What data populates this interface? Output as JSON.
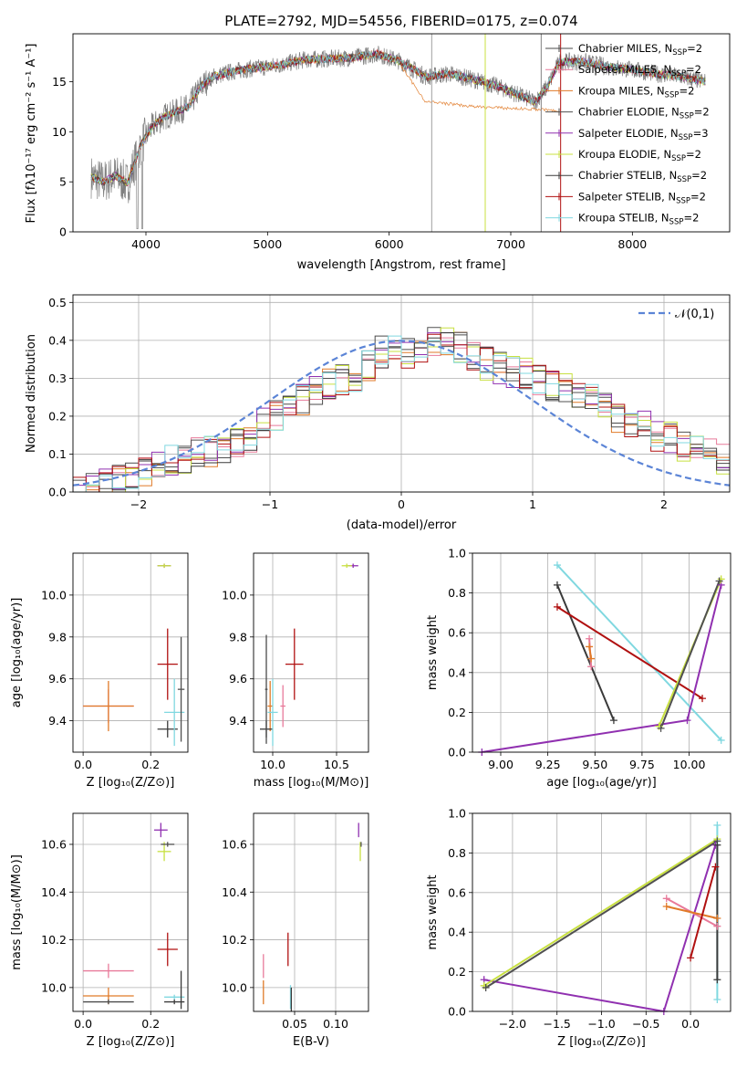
{
  "title": "PLATE=2792, MJD=54556, FIBERID=0175, z=0.074",
  "models": [
    {
      "key": "chabrier_miles",
      "label": "Chabrier MILES, ",
      "n": "2",
      "color": "#4a4a4a"
    },
    {
      "key": "salpeter_miles",
      "label": "Salpeter MILES, ",
      "n": "2",
      "color": "#e87a9a"
    },
    {
      "key": "kroupa_miles",
      "label": "Kroupa MILES, ",
      "n": "2",
      "color": "#e07a28"
    },
    {
      "key": "chabrier_elodie",
      "label": "Chabrier ELODIE, ",
      "n": "2",
      "color": "#505050"
    },
    {
      "key": "salpeter_elodie",
      "label": "Salpeter ELODIE, ",
      "n": "3",
      "color": "#9030b0"
    },
    {
      "key": "kroupa_elodie",
      "label": "Kroupa ELODIE, ",
      "n": "2",
      "color": "#c8e040"
    },
    {
      "key": "chabrier_stelib",
      "label": "Chabrier STELIB, ",
      "n": "2",
      "color": "#3a3a3a"
    },
    {
      "key": "salpeter_stelib",
      "label": "Salpeter STELIB, ",
      "n": "2",
      "color": "#b01010"
    },
    {
      "key": "kroupa_stelib",
      "label": "Kroupa STELIB, ",
      "n": "2",
      "color": "#80d8e0"
    }
  ],
  "nssp_prefix": "N",
  "nssp_sub": "SSP",
  "nssp_eq": "=",
  "chart_data": [
    {
      "id": "spectrum",
      "type": "line",
      "title": "PLATE=2792, MJD=54556, FIBERID=0175, z=0.074",
      "xlabel": "wavelength [Angstrom, rest frame]",
      "ylabel": "Flux [fλ10⁻¹⁷ erg cm⁻² s⁻¹ A⁻¹]",
      "xlim": [
        3400,
        8800
      ],
      "ylim": [
        0,
        19.8
      ],
      "xticks": [
        4000,
        5000,
        6000,
        7000,
        8000
      ],
      "yticks": [
        0,
        5,
        10,
        15
      ],
      "continuum": {
        "x": [
          3550,
          3650,
          3750,
          3850,
          3950,
          4050,
          4150,
          4250,
          4350,
          4450,
          4550,
          4700,
          4850,
          5000,
          5150,
          5300,
          5500,
          5700,
          5900,
          6100,
          6300,
          6500,
          6700,
          6900,
          7100,
          7200,
          7300,
          7400,
          7600,
          7800,
          8000,
          8200,
          8400,
          8600
        ],
        "y": [
          5.5,
          5.0,
          5.6,
          4.8,
          8.5,
          10.5,
          11.5,
          12.0,
          12.5,
          14.5,
          15.5,
          16.0,
          16.3,
          16.5,
          16.8,
          17.2,
          17.3,
          17.4,
          17.8,
          17.0,
          15.5,
          15.8,
          15.2,
          14.5,
          13.5,
          13.0,
          14.5,
          17.0,
          17.0,
          16.5,
          16.2,
          15.8,
          15.5,
          15.0
        ]
      },
      "model_tail": {
        "x": [
          6100,
          6300,
          6500,
          6700,
          6900,
          7100,
          7300,
          7400
        ],
        "y": [
          16.5,
          13.0,
          12.8,
          12.5,
          12.4,
          12.3,
          12.2,
          12.0
        ]
      }
    },
    {
      "id": "residuals",
      "type": "histogram",
      "xlabel": "(data-model)/error",
      "ylabel": "Normed distribution",
      "xlim": [
        -2.5,
        2.5
      ],
      "ylim": [
        0,
        0.52
      ],
      "xticks": [
        -2,
        -1,
        0,
        1,
        2
      ],
      "yticks": [
        0.0,
        0.1,
        0.2,
        0.3,
        0.4,
        0.5
      ],
      "reference": {
        "name": "𝒩(0,1)",
        "mean": 0,
        "sigma": 1
      },
      "profile": [
        0.01,
        0.01,
        0.02,
        0.03,
        0.04,
        0.05,
        0.06,
        0.08,
        0.09,
        0.1,
        0.11,
        0.12,
        0.13,
        0.15,
        0.18,
        0.2,
        0.22,
        0.24,
        0.26,
        0.28,
        0.3,
        0.31,
        0.33,
        0.37,
        0.38,
        0.37,
        0.38,
        0.39,
        0.4,
        0.38,
        0.36,
        0.34,
        0.33,
        0.32,
        0.31,
        0.3,
        0.28,
        0.27,
        0.25,
        0.24,
        0.22,
        0.2,
        0.18,
        0.17,
        0.15,
        0.14,
        0.12,
        0.11,
        0.1,
        0.09
      ]
    },
    {
      "id": "age_vs_z",
      "type": "scatter",
      "xlabel": "Z [log₁₀(Z/Z⊙)]",
      "ylabel": "age  [log₁₀(age/yr)]",
      "xlim": [
        -0.03,
        0.31
      ],
      "ylim": [
        9.25,
        10.2
      ],
      "xticks": [
        0.0,
        0.2
      ],
      "yticks": [
        9.4,
        9.6,
        9.8,
        10.0
      ],
      "points": [
        {
          "m": "salpeter_elodie",
          "x": 0.24,
          "y": 10.14,
          "xe": 0.02,
          "ye": 0.01
        },
        {
          "m": "kroupa_elodie",
          "x": 0.24,
          "y": 10.14,
          "xe": 0.02,
          "ye": 0.01
        },
        {
          "m": "salpeter_miles",
          "x": 0.075,
          "y": 9.47,
          "xe": 0.075,
          "ye": 0.08
        },
        {
          "m": "kroupa_miles",
          "x": 0.075,
          "y": 9.47,
          "xe": 0.075,
          "ye": 0.12
        },
        {
          "m": "salpeter_stelib",
          "x": 0.25,
          "y": 9.67,
          "xe": 0.03,
          "ye": 0.17
        },
        {
          "m": "chabrier_stelib",
          "x": 0.25,
          "y": 9.36,
          "xe": 0.03,
          "ye": 0.04
        },
        {
          "m": "kroupa_stelib",
          "x": 0.27,
          "y": 9.44,
          "xe": 0.03,
          "ye": 0.16
        },
        {
          "m": "chabrier_elodie",
          "x": 0.29,
          "y": 9.55,
          "xe": 0.01,
          "ye": 0.25
        }
      ]
    },
    {
      "id": "age_vs_mass",
      "type": "scatter",
      "xlabel": "mass [log₁₀(M/M⊙)]",
      "ylabel": "",
      "xlim": [
        9.85,
        10.75
      ],
      "ylim": [
        9.25,
        10.2
      ],
      "xticks": [
        10.0,
        10.5
      ],
      "yticks": [
        9.4,
        9.6,
        9.8,
        10.0
      ],
      "points": [
        {
          "m": "salpeter_elodie",
          "x": 10.63,
          "y": 10.14,
          "xe": 0.04,
          "ye": 0.01
        },
        {
          "m": "kroupa_elodie",
          "x": 10.58,
          "y": 10.14,
          "xe": 0.04,
          "ye": 0.01
        },
        {
          "m": "salpeter_stelib",
          "x": 10.17,
          "y": 9.67,
          "xe": 0.07,
          "ye": 0.17
        },
        {
          "m": "salpeter_miles",
          "x": 10.08,
          "y": 9.47,
          "xe": 0.02,
          "ye": 0.1
        },
        {
          "m": "kroupa_miles",
          "x": 9.98,
          "y": 9.47,
          "xe": 0.02,
          "ye": 0.12
        },
        {
          "m": "chabrier_stelib",
          "x": 9.95,
          "y": 9.36,
          "xe": 0.05,
          "ye": 0.04
        },
        {
          "m": "kroupa_stelib",
          "x": 10.0,
          "y": 9.44,
          "xe": 0.04,
          "ye": 0.16
        },
        {
          "m": "chabrier_miles",
          "x": 9.95,
          "y": 9.55,
          "xe": 0.01,
          "ye": 0.26
        }
      ]
    },
    {
      "id": "mass_weight_vs_age",
      "type": "line",
      "xlabel": "age  [log₁₀(age/yr)]",
      "ylabel": "mass weight",
      "xlim": [
        8.85,
        10.22
      ],
      "ylim": [
        0,
        1
      ],
      "xticks": [
        9.0,
        9.25,
        9.5,
        9.75,
        10.0
      ],
      "yticks": [
        0.0,
        0.2,
        0.4,
        0.6,
        0.8,
        1.0
      ],
      "series": [
        {
          "m": "chabrier_stelib",
          "x": [
            9.3,
            9.6
          ],
          "y": [
            0.84,
            0.16
          ]
        },
        {
          "m": "kroupa_stelib",
          "x": [
            9.3,
            10.17
          ],
          "y": [
            0.94,
            0.06
          ]
        },
        {
          "m": "salpeter_stelib",
          "x": [
            9.3,
            10.07
          ],
          "y": [
            0.73,
            0.27
          ]
        },
        {
          "m": "salpeter_miles",
          "x": [
            9.47,
            9.48
          ],
          "y": [
            0.57,
            0.43
          ]
        },
        {
          "m": "kroupa_miles",
          "x": [
            9.47,
            9.48
          ],
          "y": [
            0.53,
            0.47
          ]
        },
        {
          "m": "salpeter_elodie",
          "x": [
            8.9,
            9.99,
            10.17
          ],
          "y": [
            0.0,
            0.16,
            0.84
          ]
        },
        {
          "m": "kroupa_elodie",
          "x": [
            9.84,
            10.17
          ],
          "y": [
            0.13,
            0.87
          ]
        },
        {
          "m": "chabrier_elodie",
          "x": [
            9.85,
            10.16
          ],
          "y": [
            0.12,
            0.86
          ]
        }
      ]
    },
    {
      "id": "mass_vs_z",
      "type": "scatter",
      "xlabel": "Z [log₁₀(Z/Z⊙)]",
      "ylabel": "mass [log₁₀(M/M⊙)]",
      "xlim": [
        -0.03,
        0.31
      ],
      "ylim": [
        9.9,
        10.73
      ],
      "xticks": [
        0.0,
        0.2
      ],
      "yticks": [
        10.0,
        10.2,
        10.4,
        10.6
      ],
      "points": [
        {
          "m": "salpeter_elodie",
          "x": 0.23,
          "y": 10.66,
          "xe": 0.02,
          "ye": 0.03
        },
        {
          "m": "kroupa_elodie",
          "x": 0.24,
          "y": 10.57,
          "xe": 0.02,
          "ye": 0.04
        },
        {
          "m": "chabrier_elodie",
          "x": 0.25,
          "y": 10.6,
          "xe": 0.02,
          "ye": 0.01
        },
        {
          "m": "salpeter_stelib",
          "x": 0.25,
          "y": 10.16,
          "xe": 0.03,
          "ye": 0.07
        },
        {
          "m": "salpeter_miles",
          "x": 0.075,
          "y": 10.07,
          "xe": 0.075,
          "ye": 0.03
        },
        {
          "m": "kroupa_miles",
          "x": 0.075,
          "y": 9.965,
          "xe": 0.075,
          "ye": 0.035
        },
        {
          "m": "kroupa_stelib",
          "x": 0.27,
          "y": 9.96,
          "xe": 0.03,
          "ye": 0.01
        },
        {
          "m": "chabrier_stelib",
          "x": 0.27,
          "y": 9.94,
          "xe": 0.03,
          "ye": 0.01
        },
        {
          "m": "chabrier_miles",
          "x": 0.075,
          "y": 9.94,
          "xe": 0.075,
          "ye": 0.01
        },
        {
          "m": "chabrier_stelib",
          "x": 0.29,
          "y": 9.99,
          "xe": 0.0,
          "ye": 0.08
        }
      ]
    },
    {
      "id": "mass_vs_ebv",
      "type": "scatter",
      "xlabel": "E(B-V)",
      "ylabel": "",
      "xlim": [
        0.0,
        0.14
      ],
      "ylim": [
        9.9,
        10.73
      ],
      "xticks": [
        0.05,
        0.1
      ],
      "yticks": [
        10.0,
        10.2,
        10.4,
        10.6
      ],
      "points": [
        {
          "m": "salpeter_elodie",
          "x": 0.128,
          "y": 10.66,
          "xe": 0,
          "ye": 0.03
        },
        {
          "m": "kroupa_elodie",
          "x": 0.13,
          "y": 10.57,
          "xe": 0,
          "ye": 0.04
        },
        {
          "m": "chabrier_elodie",
          "x": 0.131,
          "y": 10.6,
          "xe": 0,
          "ye": 0.01
        },
        {
          "m": "salpeter_stelib",
          "x": 0.042,
          "y": 10.16,
          "xe": 0,
          "ye": 0.07
        },
        {
          "m": "salpeter_miles",
          "x": 0.012,
          "y": 10.09,
          "xe": 0,
          "ye": 0.05
        },
        {
          "m": "kroupa_miles",
          "x": 0.012,
          "y": 9.98,
          "xe": 0,
          "ye": 0.05
        },
        {
          "m": "kroupa_stelib",
          "x": 0.045,
          "y": 9.96,
          "xe": 0,
          "ye": 0.05
        },
        {
          "m": "chabrier_stelib",
          "x": 0.046,
          "y": 9.95,
          "xe": 0,
          "ye": 0.05
        }
      ]
    },
    {
      "id": "mass_weight_vs_z",
      "type": "line",
      "xlabel": "Z [log₁₀(Z/Z⊙)]",
      "ylabel": "mass weight",
      "xlim": [
        -2.45,
        0.45
      ],
      "ylim": [
        0,
        1
      ],
      "xticks": [
        -2.0,
        -1.5,
        -1.0,
        -0.5,
        0.0
      ],
      "yticks": [
        0.0,
        0.2,
        0.4,
        0.6,
        0.8,
        1.0
      ],
      "series": [
        {
          "m": "salpeter_elodie",
          "x": [
            -2.32,
            -0.3,
            0.28
          ],
          "y": [
            0.16,
            0.0,
            0.84
          ]
        },
        {
          "m": "kroupa_elodie",
          "x": [
            -2.32,
            0.3
          ],
          "y": [
            0.13,
            0.87
          ]
        },
        {
          "m": "chabrier_elodie",
          "x": [
            -2.3,
            0.3
          ],
          "y": [
            0.12,
            0.86
          ]
        },
        {
          "m": "salpeter_miles",
          "x": [
            -0.27,
            0.3
          ],
          "y": [
            0.57,
            0.43
          ]
        },
        {
          "m": "kroupa_miles",
          "x": [
            -0.27,
            0.3
          ],
          "y": [
            0.53,
            0.47
          ]
        },
        {
          "m": "salpeter_stelib",
          "x": [
            0.0,
            0.28
          ],
          "y": [
            0.27,
            0.73
          ]
        },
        {
          "m": "kroupa_stelib",
          "x": [
            0.3,
            0.3
          ],
          "y": [
            0.06,
            0.94
          ]
        },
        {
          "m": "chabrier_stelib",
          "x": [
            0.3,
            0.3
          ],
          "y": [
            0.16,
            0.84
          ]
        }
      ]
    }
  ]
}
